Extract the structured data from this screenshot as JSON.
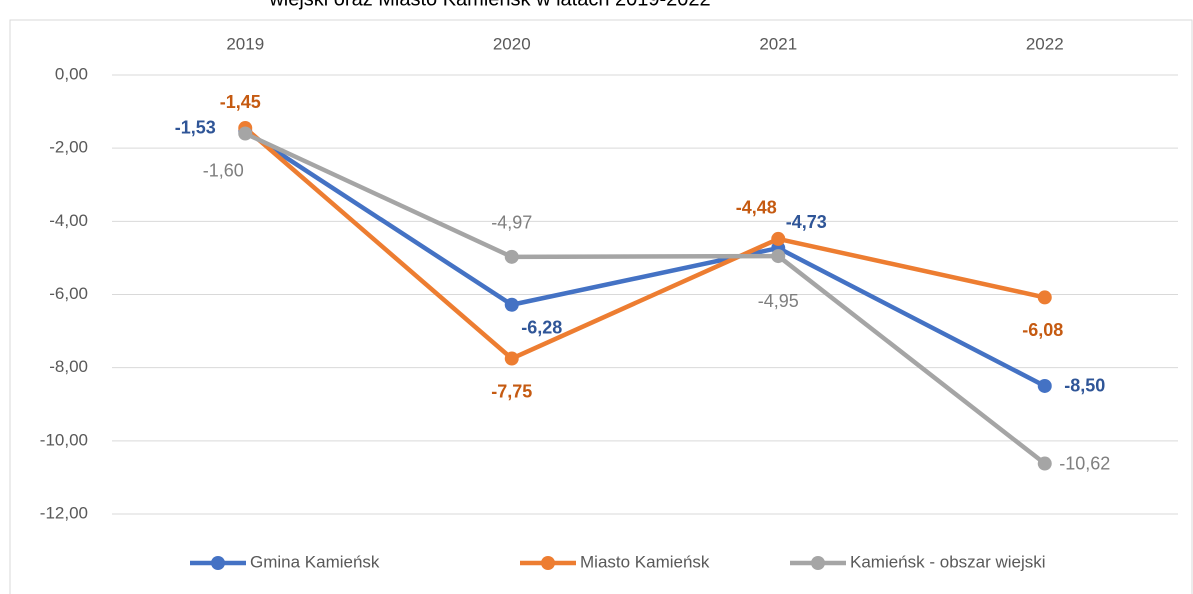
{
  "chart_data": {
    "type": "line",
    "title": "wiejski oraz Miasto Kamieńsk w latach 2019-2022",
    "categories": [
      "2019",
      "2020",
      "2021",
      "2022"
    ],
    "series": [
      {
        "name": "Gmina Kamieńsk",
        "color": "#4472c4",
        "values": [
          -1.53,
          -6.28,
          -4.73,
          -8.5
        ],
        "value_labels": [
          "-1,53",
          "-6,28",
          "-4,73",
          "-8,50"
        ]
      },
      {
        "name": "Miasto Kamieńsk",
        "color": "#ed7d31",
        "values": [
          -1.45,
          -7.75,
          -4.48,
          -6.08
        ],
        "value_labels": [
          "-1,45",
          "-7,75",
          "-4,48",
          "-6,08"
        ]
      },
      {
        "name": "Kamieńsk - obszar wiejski",
        "color": "#a5a5a5",
        "values": [
          -1.6,
          -4.97,
          -4.95,
          -10.62
        ],
        "value_labels": [
          "-1,60",
          "-4,97",
          "-4,95",
          "-10,62"
        ]
      }
    ],
    "ylim": [
      -12,
      0
    ],
    "yticks": [
      {
        "value": 0,
        "label": "0,00"
      },
      {
        "value": -2,
        "label": "-2,00"
      },
      {
        "value": -4,
        "label": "-4,00"
      },
      {
        "value": -6,
        "label": "-6,00"
      },
      {
        "value": -8,
        "label": "-8,00"
      },
      {
        "value": -10,
        "label": "-10,00"
      },
      {
        "value": -12,
        "label": "-12,00"
      }
    ],
    "grid": true,
    "legend": "bottom"
  }
}
